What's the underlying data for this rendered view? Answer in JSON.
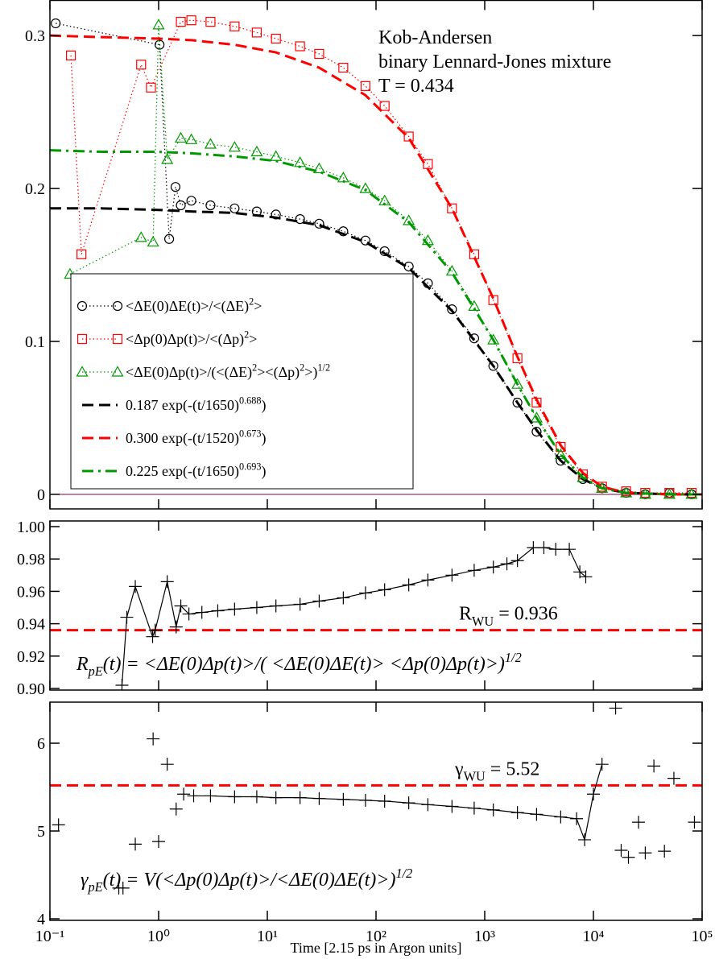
{
  "chart_data": [
    {
      "type": "line",
      "xscale": "log",
      "xlim": [
        0.1,
        100000
      ],
      "ylim": [
        -0.0095,
        0.323
      ],
      "yticks": [
        0,
        0.1,
        0.2,
        0.3
      ],
      "zero_line": true,
      "legend": "lower left",
      "annotations": [
        "Kob-Andersen",
        "binary Lennard-Jones mixture",
        "T = 0.434"
      ],
      "series": [
        {
          "name": [
            "<ΔE(0)ΔE(t)>/<(ΔE)",
            {
              "sup": "2"
            },
            ">"
          ],
          "color": "#000000",
          "marker": "circle",
          "line": "dotted",
          "x": [
            0.113,
            1.02,
            1.25,
            1.43,
            1.6,
            2,
            3,
            5,
            8,
            12,
            20,
            30,
            50,
            80,
            120,
            200,
            300,
            500,
            800,
            1200,
            2000,
            3000,
            5000,
            8000,
            12000,
            20000,
            30000,
            50000,
            80000
          ],
          "values": [
            0.308,
            0.294,
            0.167,
            0.201,
            0.189,
            0.192,
            0.189,
            0.187,
            0.185,
            0.183,
            0.18,
            0.177,
            0.172,
            0.166,
            0.159,
            0.149,
            0.138,
            0.121,
            0.102,
            0.084,
            0.06,
            0.041,
            0.022,
            0.01,
            0.004,
            0.001,
            0.0,
            0.001,
            0.0
          ]
        },
        {
          "name": [
            "<Δp(0)Δp(t)>/<(Δp)",
            {
              "sup": "2"
            },
            ">"
          ],
          "color": "#ff0000",
          "marker": "square",
          "line": "dotted",
          "x": [
            0.156,
            0.195,
            0.69,
            0.85,
            1.6,
            2,
            3,
            5,
            8,
            12,
            20,
            30,
            50,
            80,
            120,
            200,
            300,
            500,
            800,
            1200,
            2000,
            3000,
            5000,
            8000,
            12000,
            20000,
            30000,
            50000,
            80000
          ],
          "values": [
            0.287,
            0.157,
            0.281,
            0.266,
            0.309,
            0.31,
            0.309,
            0.306,
            0.302,
            0.298,
            0.293,
            0.288,
            0.279,
            0.267,
            0.254,
            0.234,
            0.216,
            0.187,
            0.157,
            0.127,
            0.089,
            0.06,
            0.031,
            0.013,
            0.005,
            0.002,
            0.001,
            0.001,
            0.001
          ]
        },
        {
          "name": [
            "<ΔE(0)Δp(t)>/(<(ΔE)",
            {
              "sup": "2"
            },
            "><(Δp)",
            {
              "sup": "2"
            },
            ">)",
            {
              "sup": "1/2"
            }
          ],
          "color": "#009900",
          "marker": "triangle",
          "line": "dotted",
          "x": [
            0.153,
            0.69,
            0.89,
            1.0,
            1.2,
            1.6,
            2,
            3,
            5,
            8,
            12,
            20,
            30,
            50,
            80,
            120,
            200,
            300,
            500,
            800,
            1200,
            2000,
            3000,
            5000,
            8000,
            12000,
            20000,
            30000,
            50000,
            80000
          ],
          "values": [
            0.144,
            0.168,
            0.165,
            0.307,
            0.219,
            0.233,
            0.232,
            0.229,
            0.227,
            0.224,
            0.221,
            0.217,
            0.213,
            0.207,
            0.2,
            0.192,
            0.179,
            0.166,
            0.146,
            0.123,
            0.101,
            0.072,
            0.05,
            0.026,
            0.011,
            0.004,
            0.001,
            0.0,
            0.0,
            0.0
          ]
        },
        {
          "name": [
            "0.187 exp(-(t/1650)",
            {
              "sup": "0.688"
            },
            ")"
          ],
          "color": "#000000",
          "marker": null,
          "line": "dashed",
          "x": [
            0.1,
            0.3,
            1,
            2,
            5,
            12,
            30,
            80,
            200,
            500,
            1200,
            2000,
            3000,
            5000,
            8000,
            12000,
            20000,
            50000,
            100000
          ],
          "values": [
            0.187,
            0.187,
            0.186,
            0.185,
            0.184,
            0.181,
            0.176,
            0.165,
            0.148,
            0.12,
            0.084,
            0.06,
            0.042,
            0.022,
            0.01,
            0.004,
            0.001,
            0.0,
            0.0
          ]
        },
        {
          "name": [
            "0.300 exp(-(t/1520)",
            {
              "sup": "0.673"
            },
            ")"
          ],
          "color": "#ff0000",
          "marker": null,
          "line": "dashed",
          "x": [
            0.1,
            0.3,
            1,
            2,
            5,
            12,
            30,
            80,
            200,
            500,
            1200,
            2000,
            3000,
            5000,
            8000,
            12000,
            20000,
            50000,
            100000
          ],
          "values": [
            0.3,
            0.299,
            0.298,
            0.297,
            0.294,
            0.289,
            0.279,
            0.261,
            0.233,
            0.187,
            0.128,
            0.09,
            0.062,
            0.032,
            0.014,
            0.005,
            0.001,
            0.0,
            0.0
          ]
        },
        {
          "name": [
            "0.225 exp(-(t/1650)",
            {
              "sup": "0.693"
            },
            ")"
          ],
          "color": "#009900",
          "marker": null,
          "line": "dashdot",
          "x": [
            0.1,
            0.3,
            1,
            2,
            5,
            12,
            30,
            80,
            200,
            500,
            1200,
            2000,
            3000,
            5000,
            8000,
            12000,
            20000,
            50000,
            100000
          ],
          "values": [
            0.225,
            0.224,
            0.224,
            0.223,
            0.221,
            0.218,
            0.211,
            0.199,
            0.178,
            0.145,
            0.101,
            0.072,
            0.05,
            0.026,
            0.011,
            0.004,
            0.001,
            0.0,
            0.0
          ]
        }
      ]
    },
    {
      "type": "scatter",
      "xscale": "log",
      "xlim": [
        0.1,
        100000
      ],
      "ylim": [
        0.899,
        1.0035
      ],
      "yticks": [
        {
          "value": 0.9,
          "label": "0.90"
        },
        {
          "value": 0.92,
          "label": "0.92"
        },
        {
          "value": 0.94,
          "label": "0.94"
        },
        {
          "value": 0.96,
          "label": "0.96"
        },
        {
          "value": 0.98,
          "label": "0.98"
        },
        {
          "value": 1.0,
          "label": "1.00"
        }
      ],
      "reference": {
        "value": 0.936,
        "color": "#ff0000",
        "label": [
          "R",
          {
            "sub": "WU"
          },
          " = 0.936"
        ]
      },
      "formula": {
        "color": "#0000ff",
        "parts": [
          "R",
          {
            "sub": "pE"
          },
          "(t) =  <ΔE(0)Δp(t)>/( <ΔE(0)ΔE(t)> <Δp(0)Δp(t)>)",
          {
            "sup": "1/2"
          }
        ]
      },
      "series": [
        {
          "color": "#000000",
          "marker": "plus",
          "line": "solid",
          "x": [
            0.46,
            0.51,
            0.61,
            0.88,
            0.93,
            1.2,
            1.45,
            1.6,
            1.9,
            2.5,
            3.5,
            5,
            8,
            12,
            20,
            30,
            50,
            80,
            120,
            200,
            300,
            500,
            800,
            1200,
            1600,
            2000,
            2800,
            3500,
            4500,
            6000,
            7500,
            8500
          ],
          "values": [
            0.902,
            0.944,
            0.963,
            0.932,
            0.936,
            0.966,
            0.938,
            0.951,
            0.946,
            0.947,
            0.948,
            0.949,
            0.95,
            0.951,
            0.952,
            0.954,
            0.956,
            0.959,
            0.961,
            0.964,
            0.967,
            0.97,
            0.973,
            0.975,
            0.977,
            0.979,
            0.987,
            0.987,
            0.986,
            0.986,
            0.972,
            0.969
          ]
        }
      ]
    },
    {
      "type": "scatter",
      "xscale": "log",
      "xlim": [
        0.1,
        100000
      ],
      "ylim": [
        3.982,
        6.468
      ],
      "yticks": [
        4,
        5,
        6
      ],
      "xticks": [
        {
          "value": 0.1,
          "label": "10⁻¹"
        },
        {
          "value": 1,
          "label": "10⁰"
        },
        {
          "value": 10,
          "label": "10¹"
        },
        {
          "value": 100,
          "label": "10²"
        },
        {
          "value": 1000,
          "label": "10³"
        },
        {
          "value": 10000,
          "label": "10⁴"
        },
        {
          "value": 100000,
          "label": "10⁵"
        }
      ],
      "xlabel": "Time [2.15 ps in Argon units]",
      "reference": {
        "value": 5.52,
        "color": "#ff0000",
        "label": [
          "γ",
          {
            "sub": "WU"
          },
          " = 5.52"
        ]
      },
      "formula": {
        "color": "#0000ff",
        "parts": [
          "γ",
          {
            "sub": "pE"
          },
          "(t) = V(<Δp(0)Δp(t)>/<ΔE(0)ΔE(t)>)",
          {
            "sup": "1/2"
          }
        ]
      },
      "series": [
        {
          "color": "#000000",
          "marker": "plus",
          "line": "none",
          "run": [
            9,
            30
          ],
          "x": [
            0.12,
            0.43,
            0.47,
            0.61,
            0.89,
            1.0,
            1.2,
            1.45,
            1.7,
            2.1,
            3,
            5,
            8,
            12,
            20,
            30,
            50,
            80,
            120,
            200,
            300,
            500,
            800,
            1200,
            2000,
            3000,
            5000,
            7000,
            8300,
            10000,
            12000,
            16000,
            18000,
            21000,
            26000,
            30000,
            36000,
            45000,
            55000,
            85000
          ],
          "values": [
            5.07,
            4.35,
            4.35,
            4.85,
            6.05,
            4.88,
            5.76,
            5.25,
            5.42,
            5.4,
            5.4,
            5.39,
            5.39,
            5.38,
            5.38,
            5.37,
            5.36,
            5.35,
            5.34,
            5.32,
            5.3,
            5.28,
            5.26,
            5.24,
            5.21,
            5.19,
            5.16,
            5.14,
            4.9,
            5.42,
            5.76,
            6.4,
            4.78,
            4.7,
            5.1,
            4.75,
            5.74,
            4.77,
            5.6,
            5.1
          ]
        }
      ]
    }
  ]
}
